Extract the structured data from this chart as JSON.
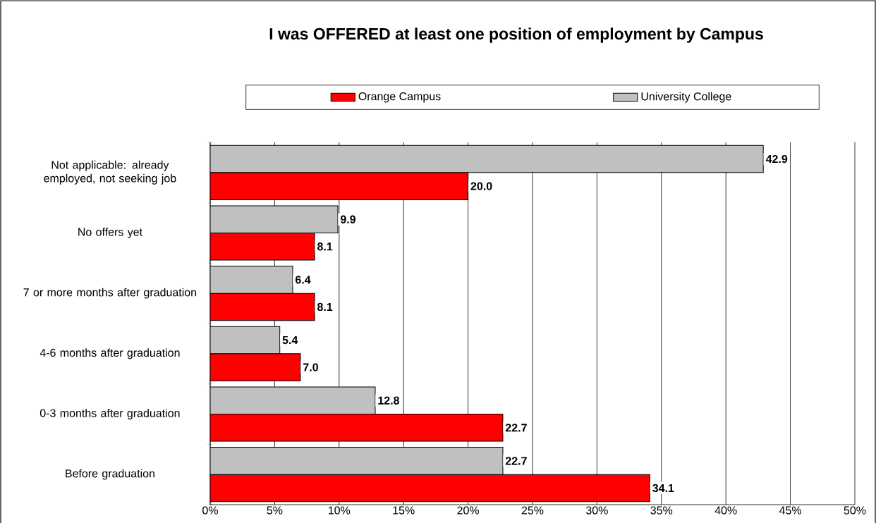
{
  "chart_data": {
    "type": "bar",
    "orientation": "horizontal",
    "title": "I was OFFERED at least one position of employment by Campus",
    "categories": [
      "Not applicable: already employed, not seeking job",
      "No offers yet",
      "7 or more months after graduation",
      "4-6 months after graduation",
      "0-3 months after graduation",
      "Before graduation"
    ],
    "series": [
      {
        "name": "Orange Campus",
        "color": "#ff0000",
        "values": [
          20.0,
          8.1,
          8.1,
          7.0,
          22.7,
          34.1
        ],
        "value_labels": [
          "20.0",
          "8.1",
          "8.1",
          "7.0",
          "22.7",
          "34.1"
        ]
      },
      {
        "name": "University College",
        "color": "#c0c0c0",
        "values": [
          42.9,
          9.9,
          6.4,
          5.4,
          12.8,
          22.7
        ],
        "value_labels": [
          "42.9",
          "9.9",
          "6.4",
          "5.4",
          "12.8",
          "22.7"
        ]
      }
    ],
    "xlim": [
      0,
      50
    ],
    "xticks": [
      {
        "value": 0,
        "label": "0%"
      },
      {
        "value": 5,
        "label": "5%"
      },
      {
        "value": 10,
        "label": "10%"
      },
      {
        "value": 15,
        "label": "15%"
      },
      {
        "value": 20,
        "label": "20%"
      },
      {
        "value": 25,
        "label": "25%"
      },
      {
        "value": 30,
        "label": "30%"
      },
      {
        "value": 35,
        "label": "35%"
      },
      {
        "value": 40,
        "label": "40%"
      },
      {
        "value": 45,
        "label": "45%"
      },
      {
        "value": 50,
        "label": "50%"
      }
    ],
    "grid": "x",
    "legend": "top"
  }
}
